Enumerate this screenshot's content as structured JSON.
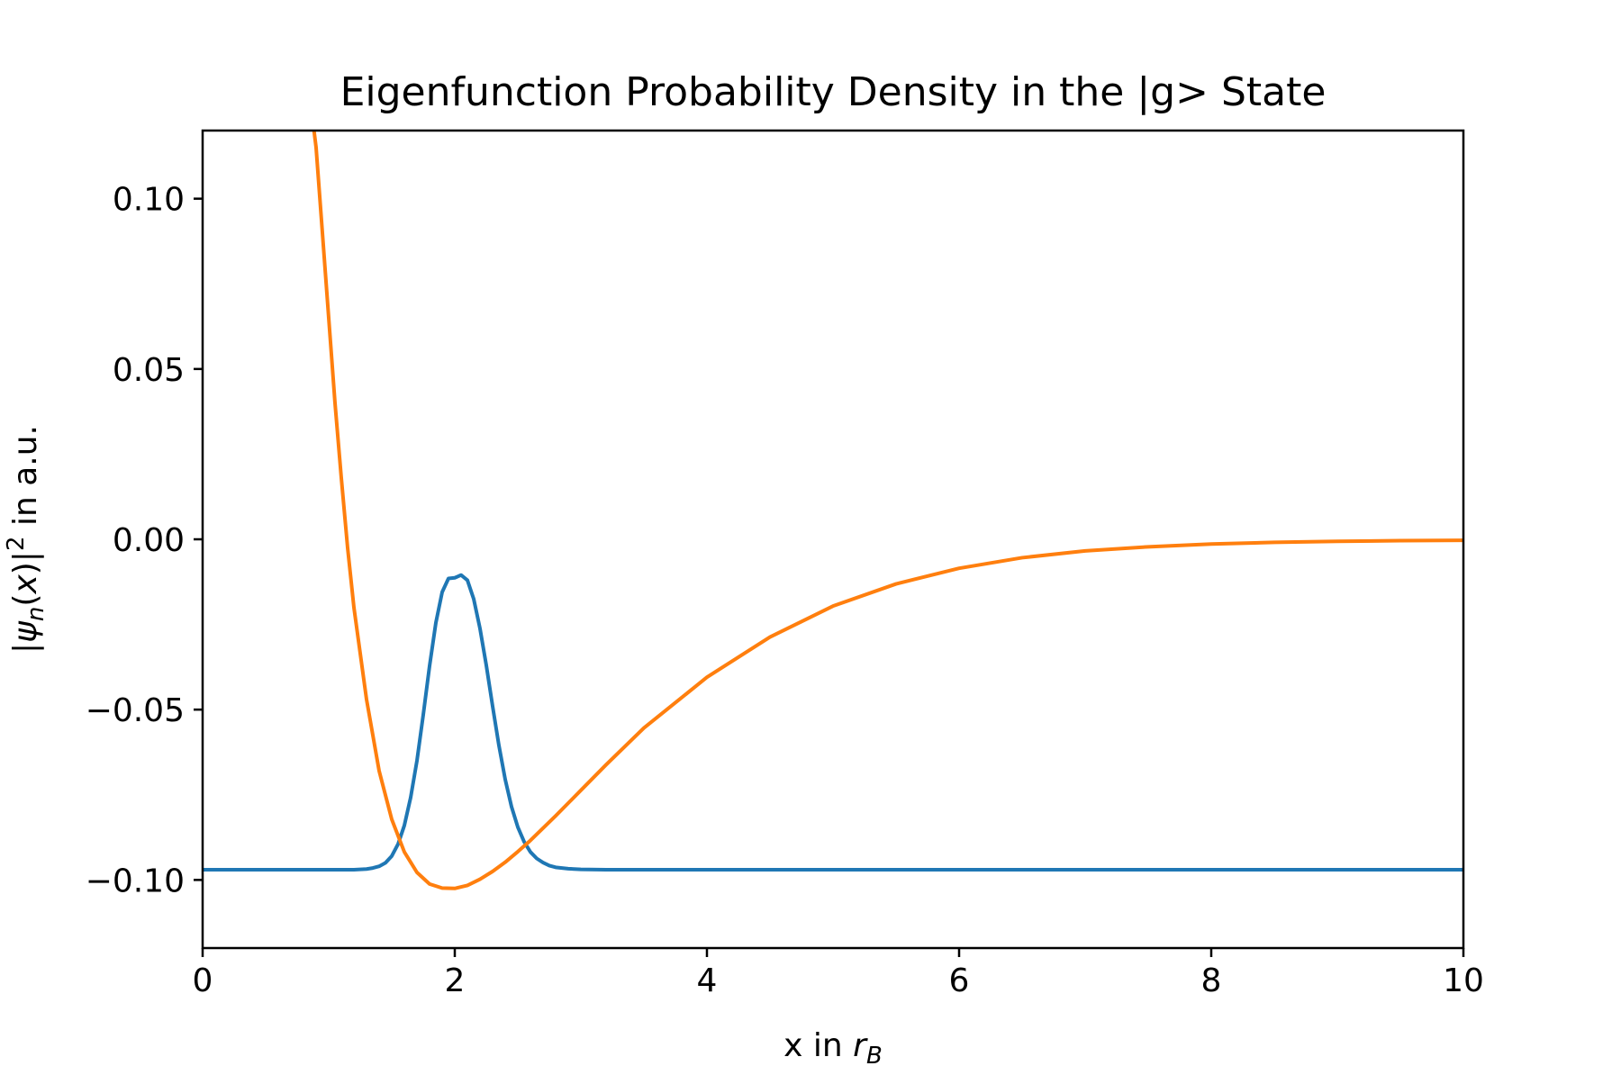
{
  "chart_data": {
    "type": "line",
    "title": "Eigenfunction Probability Density in the |g> State",
    "xlabel": {
      "prefix": "x in ",
      "var": "r",
      "sub": "B"
    },
    "ylabel": {
      "open": "|",
      "psi": "ψ",
      "psi_sub": "n",
      "lp": "(",
      "xvar": "x",
      "rp": ")|",
      "sup": "2",
      "suffix": " in a.u."
    },
    "xlim": [
      0,
      10
    ],
    "ylim": [
      -0.12,
      0.12
    ],
    "x_ticks": [
      0,
      2,
      4,
      6,
      8,
      10
    ],
    "x_tick_labels": [
      "0",
      "2",
      "4",
      "6",
      "8",
      "10"
    ],
    "y_ticks": [
      0.1,
      0.05,
      0.0,
      -0.05,
      -0.1
    ],
    "y_tick_labels": [
      "0.10",
      "0.05",
      "0.00",
      "−0.05",
      "−0.10"
    ],
    "grid": false,
    "legend": "none",
    "series": [
      {
        "color": "#1f77b4",
        "x": [
          0.0,
          0.25,
          0.5,
          0.75,
          1.0,
          1.1,
          1.2,
          1.3,
          1.35,
          1.4,
          1.45,
          1.5,
          1.55,
          1.6,
          1.65,
          1.7,
          1.75,
          1.8,
          1.85,
          1.9,
          1.95,
          2.0,
          2.05,
          2.1,
          2.15,
          2.2,
          2.25,
          2.3,
          2.35,
          2.4,
          2.45,
          2.5,
          2.55,
          2.6,
          2.65,
          2.7,
          2.75,
          2.8,
          2.9,
          3.0,
          3.2,
          3.5,
          4.0,
          5.0,
          6.0,
          7.0,
          8.0,
          9.0,
          10.0
        ],
        "y": [
          -0.097,
          -0.097,
          -0.097,
          -0.097,
          -0.097,
          -0.097,
          -0.097,
          -0.0968,
          -0.0965,
          -0.096,
          -0.095,
          -0.093,
          -0.0895,
          -0.084,
          -0.0758,
          -0.065,
          -0.0515,
          -0.0372,
          -0.0245,
          -0.0155,
          -0.0115,
          -0.0113,
          -0.0105,
          -0.012,
          -0.0175,
          -0.0262,
          -0.037,
          -0.049,
          -0.0605,
          -0.0705,
          -0.0785,
          -0.0845,
          -0.0888,
          -0.0918,
          -0.0937,
          -0.0949,
          -0.0958,
          -0.0963,
          -0.0967,
          -0.0969,
          -0.097,
          -0.097,
          -0.097,
          -0.097,
          -0.097,
          -0.097,
          -0.097,
          -0.097,
          -0.097
        ]
      },
      {
        "color": "#ff7f0e",
        "x": [
          0.87,
          0.9,
          0.95,
          1.0,
          1.05,
          1.1,
          1.15,
          1.2,
          1.3,
          1.4,
          1.5,
          1.6,
          1.7,
          1.8,
          1.9,
          2.0,
          2.1,
          2.2,
          2.3,
          2.4,
          2.5,
          2.6,
          2.8,
          3.0,
          3.2,
          3.5,
          4.0,
          4.5,
          5.0,
          5.5,
          6.0,
          6.5,
          7.0,
          7.5,
          8.0,
          8.5,
          9.0,
          9.5,
          10.0
        ],
        "y": [
          0.124,
          0.115,
          0.09,
          0.065,
          0.04,
          0.018,
          -0.0025,
          -0.02,
          -0.047,
          -0.068,
          -0.0822,
          -0.0918,
          -0.0978,
          -0.1012,
          -0.1024,
          -0.1025,
          -0.1016,
          -0.0998,
          -0.0975,
          -0.0948,
          -0.0917,
          -0.0884,
          -0.0812,
          -0.0737,
          -0.0662,
          -0.0554,
          -0.0405,
          -0.0287,
          -0.0196,
          -0.0131,
          -0.0085,
          -0.0054,
          -0.0034,
          -0.0022,
          -0.0014,
          -0.0009,
          -0.0006,
          -0.0004,
          -0.0003
        ]
      }
    ]
  }
}
